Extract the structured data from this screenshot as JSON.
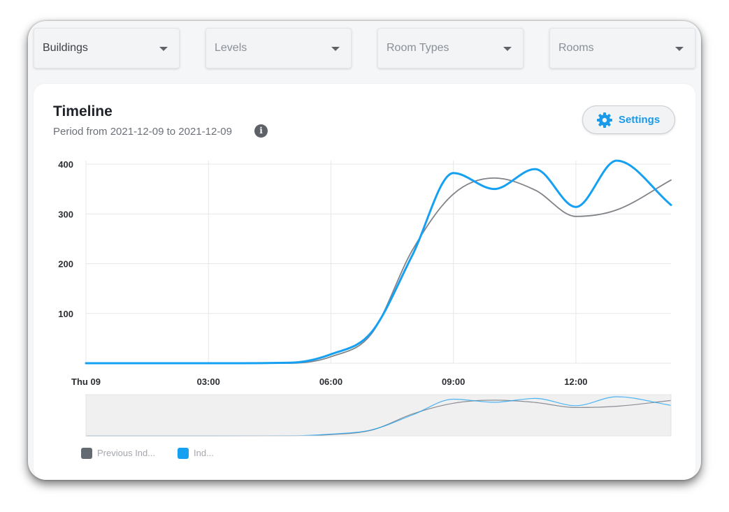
{
  "filters": [
    {
      "label": "Buildings",
      "selected": true
    },
    {
      "label": "Levels",
      "selected": false
    },
    {
      "label": "Room Types",
      "selected": false
    },
    {
      "label": "Rooms",
      "selected": false
    }
  ],
  "card": {
    "title": "Timeline",
    "subtitle": "Period from 2021-12-09 to 2021-12-09",
    "info_icon": "info-icon",
    "settings_label": "Settings",
    "settings_icon": "gear-icon"
  },
  "colors": {
    "previous": "#808489",
    "current": "#15a0f2",
    "accent": "#1a9ae8",
    "previous_swatch": "#646a72",
    "current_swatch": "#15a0f2"
  },
  "chart_data": {
    "type": "line",
    "x_ticks": [
      "Thu 09",
      "03:00",
      "06:00",
      "09:00",
      "12:00"
    ],
    "x_tick_hours": [
      0,
      3,
      6,
      9,
      12
    ],
    "xlim": [
      0,
      14.33
    ],
    "y_ticks": [
      "400",
      "300",
      "200",
      "100"
    ],
    "y_tick_values": [
      400,
      300,
      200,
      100
    ],
    "ylim": [
      0,
      400
    ],
    "grid": true,
    "legend_position": "bottom-left",
    "navigator": true,
    "series": [
      {
        "name": "Previous Ind...",
        "key": "previous",
        "x": [
          0,
          3,
          5,
          6,
          7,
          8,
          9,
          10,
          11,
          12,
          13,
          14.33
        ],
        "y": [
          0,
          0,
          0,
          13,
          60,
          228,
          340,
          372,
          348,
          295,
          308,
          368
        ]
      },
      {
        "name": "Ind...",
        "key": "current",
        "x": [
          0,
          3,
          5,
          6,
          7,
          8,
          9,
          10,
          11,
          12,
          13,
          14.33
        ],
        "y": [
          0,
          0,
          1,
          18,
          63,
          218,
          382,
          350,
          390,
          314,
          407,
          318
        ]
      }
    ]
  }
}
